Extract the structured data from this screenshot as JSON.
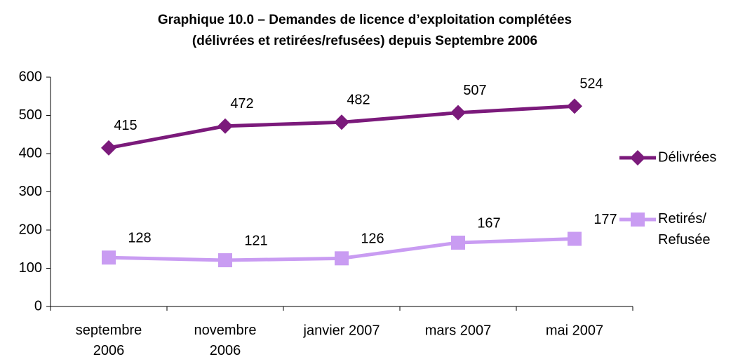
{
  "chart_data": {
    "type": "line",
    "title": "Graphique 10.0 – Demandes de licence d’exploitation complétées (délivrées et retirées/refusées) depuis Septembre 2006",
    "categories": [
      "septembre 2006",
      "novembre 2006",
      "janvier 2007",
      "mars 2007",
      "mai 2007"
    ],
    "series": [
      {
        "name": "Délivrées",
        "color": "#7b1a7b",
        "marker": "diamond",
        "values": [
          415,
          472,
          482,
          507,
          524
        ]
      },
      {
        "name": "Retirés/ Refusée",
        "color": "#c99cf2",
        "marker": "square",
        "values": [
          128,
          121,
          126,
          167,
          177
        ]
      }
    ],
    "ylim": [
      0,
      600
    ],
    "yticks": [
      0,
      100,
      200,
      300,
      400,
      500,
      600
    ],
    "legend": "right"
  }
}
